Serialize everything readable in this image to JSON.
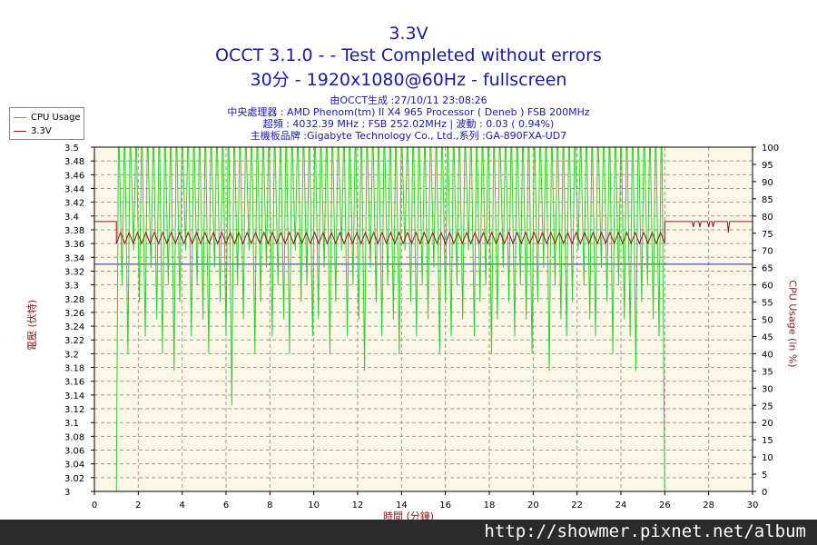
{
  "header": {
    "title_line1": "3.3V",
    "title_line2": "OCCT 3.1.0 -  - Test Completed without errors",
    "title_line3": "30分 - 1920x1080@60Hz - fullscreen",
    "info_line1": "由OCCT生成 :27/10/11 23:08:26",
    "info_line2": "中央處理器 : AMD Phenom(tm) II X4 965 Processor ( Deneb ) FSB 200MHz",
    "info_line3": "超頻 : 4032.39 MHz ; FSB 252.02MHz | 波動 : 0.03 ( 0.94%)",
    "info_line4": "主機板品牌 :Gigabyte Technology Co., Ltd.,系列 :GA-890FXA-UD7"
  },
  "watermark": "http://showmer.pixnet.net/album",
  "chart_data": {
    "type": "line",
    "xlabel": "時間 (分鐘)",
    "ylabel_left": "電壓 (伏特)",
    "ylabel_right": "CPU Usage (in %)",
    "xlim": [
      0,
      30
    ],
    "ylim_left": [
      3.0,
      3.5
    ],
    "ylim_right": [
      0,
      100
    ],
    "x_ticks": [
      0,
      2,
      4,
      6,
      8,
      10,
      12,
      14,
      16,
      18,
      20,
      22,
      24,
      26,
      28,
      30
    ],
    "y_left_ticks": [
      3,
      3.02,
      3.04,
      3.06,
      3.08,
      3.1,
      3.12,
      3.14,
      3.16,
      3.18,
      3.2,
      3.22,
      3.24,
      3.26,
      3.28,
      3.3,
      3.32,
      3.34,
      3.36,
      3.38,
      3.4,
      3.42,
      3.44,
      3.46,
      3.48,
      3.5
    ],
    "y_right_ticks": [
      0,
      5,
      10,
      15,
      20,
      25,
      30,
      35,
      40,
      45,
      50,
      55,
      60,
      65,
      70,
      75,
      80,
      85,
      90,
      95,
      100
    ],
    "grid": true,
    "legend_position": "top-left",
    "reference_line": {
      "value": 3.33,
      "axis": "left",
      "color": "#2222aa"
    },
    "series": [
      {
        "name": "CPU Usage",
        "axis": "right",
        "color": "#33cc33",
        "idle_before": 0,
        "idle_after": 0,
        "load_start": 1.0,
        "load_end": 26.0,
        "high": 100,
        "dip_values": [
          0,
          60,
          40,
          70,
          55,
          45,
          65,
          50,
          40,
          60,
          35,
          55,
          70,
          45,
          60,
          50,
          40,
          65,
          55,
          45,
          25,
          60,
          50,
          70,
          40,
          55,
          65,
          45,
          60,
          50,
          40,
          70,
          55,
          60,
          45,
          50,
          65,
          40,
          55,
          70,
          45,
          60,
          50,
          35,
          65,
          55,
          45,
          60,
          50,
          40,
          70,
          55,
          45,
          60,
          50,
          65,
          40,
          55,
          45,
          60,
          50,
          70,
          45,
          55,
          60,
          40,
          50,
          65,
          55,
          45,
          60,
          50,
          40,
          55,
          65,
          35,
          60,
          50,
          45,
          55,
          70,
          60,
          50,
          45,
          65,
          55,
          40,
          60,
          50,
          45,
          35,
          55,
          60,
          50,
          45,
          0
        ]
      },
      {
        "name": "3.3V",
        "axis": "left",
        "color": "#8b1a1a",
        "before_value": 3.392,
        "low_value": 3.36,
        "high_value": 3.376,
        "after_value": 3.392,
        "after_dip_times": [
          27.3,
          27.6,
          28.0,
          28.2,
          28.9
        ],
        "after_dip_value": 3.384,
        "after_dip_deep": 3.376,
        "switch_min": 26.0,
        "load_start_min": 1.0
      }
    ]
  }
}
